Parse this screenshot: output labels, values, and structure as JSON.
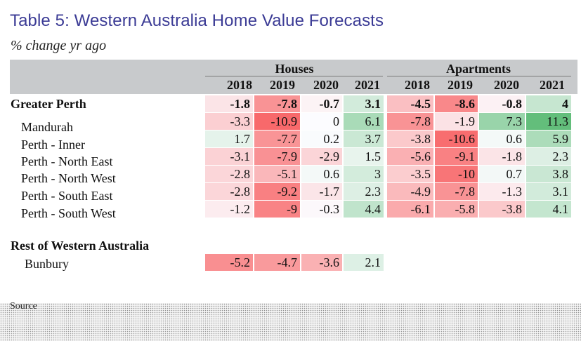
{
  "header": {
    "title": "Table 5: Western Australia Home Value Forecasts",
    "subtitle": "% change yr ago"
  },
  "footer": {
    "source": "Source"
  },
  "chart_data": {
    "type": "table",
    "title": "Table 5: Western Australia Home Value Forecasts",
    "subtitle": "% change yr ago",
    "column_groups": [
      {
        "name": "Houses",
        "years": [
          "2018",
          "2019",
          "2020",
          "2021"
        ]
      },
      {
        "name": "Apartments",
        "years": [
          "2018",
          "2019",
          "2020",
          "2021"
        ]
      }
    ],
    "sections": [
      {
        "label": "",
        "rows": [
          {
            "name": "Greater Perth",
            "bold": true,
            "houses": [
              "-1.8",
              "-7.8",
              "-0.7",
              "3.1"
            ],
            "apartments": [
              "-4.5",
              "-8.6",
              "-0.8",
              "4"
            ]
          },
          {
            "name": "Mandurah",
            "houses": [
              "-3.3",
              "-10.9",
              "0",
              "6.1"
            ],
            "apartments": [
              "-7.8",
              "-1.9",
              "7.3",
              "11.3"
            ]
          },
          {
            "name": "Perth - Inner",
            "houses": [
              "1.7",
              "-7.7",
              "0.2",
              "3.7"
            ],
            "apartments": [
              "-3.8",
              "-10.6",
              "0.6",
              "5.9"
            ]
          },
          {
            "name": "Perth - North East",
            "houses": [
              "-3.1",
              "-7.9",
              "-2.9",
              "1.5"
            ],
            "apartments": [
              "-5.6",
              "-9.1",
              "-1.8",
              "2.3"
            ]
          },
          {
            "name": "Perth - North West",
            "houses": [
              "-2.8",
              "-5.1",
              "0.6",
              "3"
            ],
            "apartments": [
              "-3.5",
              "-10",
              "0.7",
              "3.8"
            ]
          },
          {
            "name": "Perth - South East",
            "houses": [
              "-2.8",
              "-9.2",
              "-1.7",
              "2.3"
            ],
            "apartments": [
              "-4.9",
              "-7.8",
              "-1.3",
              "3.1"
            ]
          },
          {
            "name": "Perth - South West",
            "houses": [
              "-1.2",
              "-9",
              "-0.3",
              "4.4"
            ],
            "apartments": [
              "-6.1",
              "-5.8",
              "-3.8",
              "4.1"
            ]
          }
        ]
      },
      {
        "label": "Rest of Western Australia",
        "rows": [
          {
            "name": "Bunbury",
            "houses": [
              "-5.2",
              "-4.7",
              "-3.6",
              "2.1"
            ],
            "apartments": []
          }
        ]
      }
    ],
    "color_scale": {
      "negative": "#f8696b",
      "neutral": "#fcfcff",
      "positive": "#63be7b"
    }
  }
}
